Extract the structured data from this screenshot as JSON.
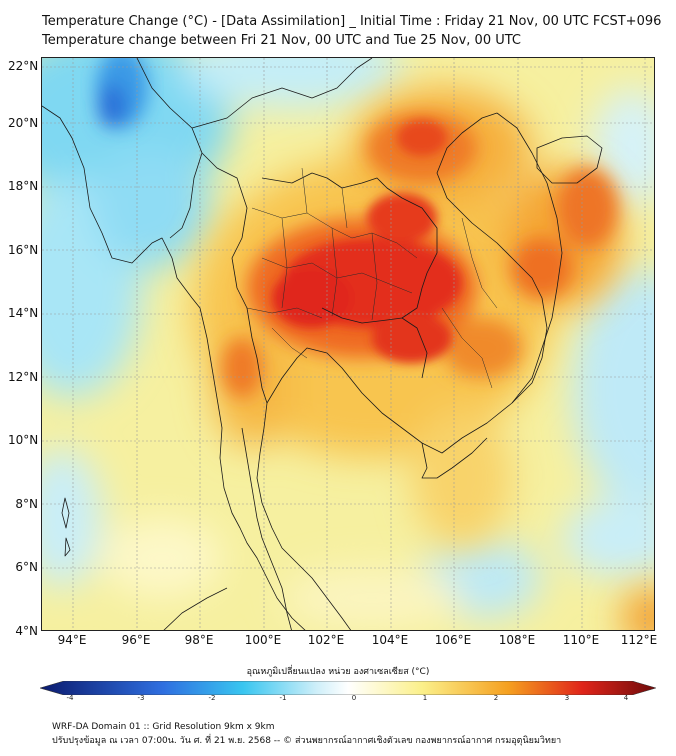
{
  "title": {
    "line1": "Temperature Change (°C) - [Data Assimilation] _ Initial Time : Friday 21 Nov, 00 UTC FCST+096",
    "line2": "Temperature change between Fri 21 Nov, 00 UTC and Tue 25 Nov, 00 UTC"
  },
  "map": {
    "lat_labels": [
      "22°N",
      "20°N",
      "18°N",
      "16°N",
      "14°N",
      "12°N",
      "10°N",
      "8°N",
      "6°N",
      "4°N"
    ],
    "lon_labels": [
      "94°E",
      "96°E",
      "98°E",
      "100°E",
      "102°E",
      "104°E",
      "106°E",
      "108°E",
      "110°E",
      "112°E"
    ],
    "lat_range": [
      4,
      22
    ],
    "lon_range": [
      93,
      112.3
    ]
  },
  "colorbar": {
    "title": "อุณหภูมิเปลี่ยนแปลง หน่วย องศาเซลเซียส (°C)",
    "ticks": [
      "-4",
      "-3",
      "-2",
      "-1",
      "0",
      "1",
      "2",
      "3",
      "4"
    ],
    "range": [
      -4,
      4
    ],
    "colors": {
      "cold_end": "#0b1a6e",
      "blue": "#2f6fe0",
      "cyan": "#39c6f0",
      "light": "#cfeff9",
      "neutral": "#ffffff",
      "yellow": "#fbf08a",
      "orange": "#f5a020",
      "red": "#e0251a",
      "warm_end": "#6e0b0b"
    }
  },
  "footer": {
    "line1": "WRF-DA Domain 01 :: Grid Resolution 9km x 9km",
    "line2": "ปรับปรุงข้อมูล ณ เวลา 07:00น. วัน ศ. ที่ 21 พ.ย. 2568 -- © ส่วนพยากรณ์อากาศเชิงตัวเลข กองพยากรณ์อากาศ กรมอุตุนิยมวิทยา"
  }
}
